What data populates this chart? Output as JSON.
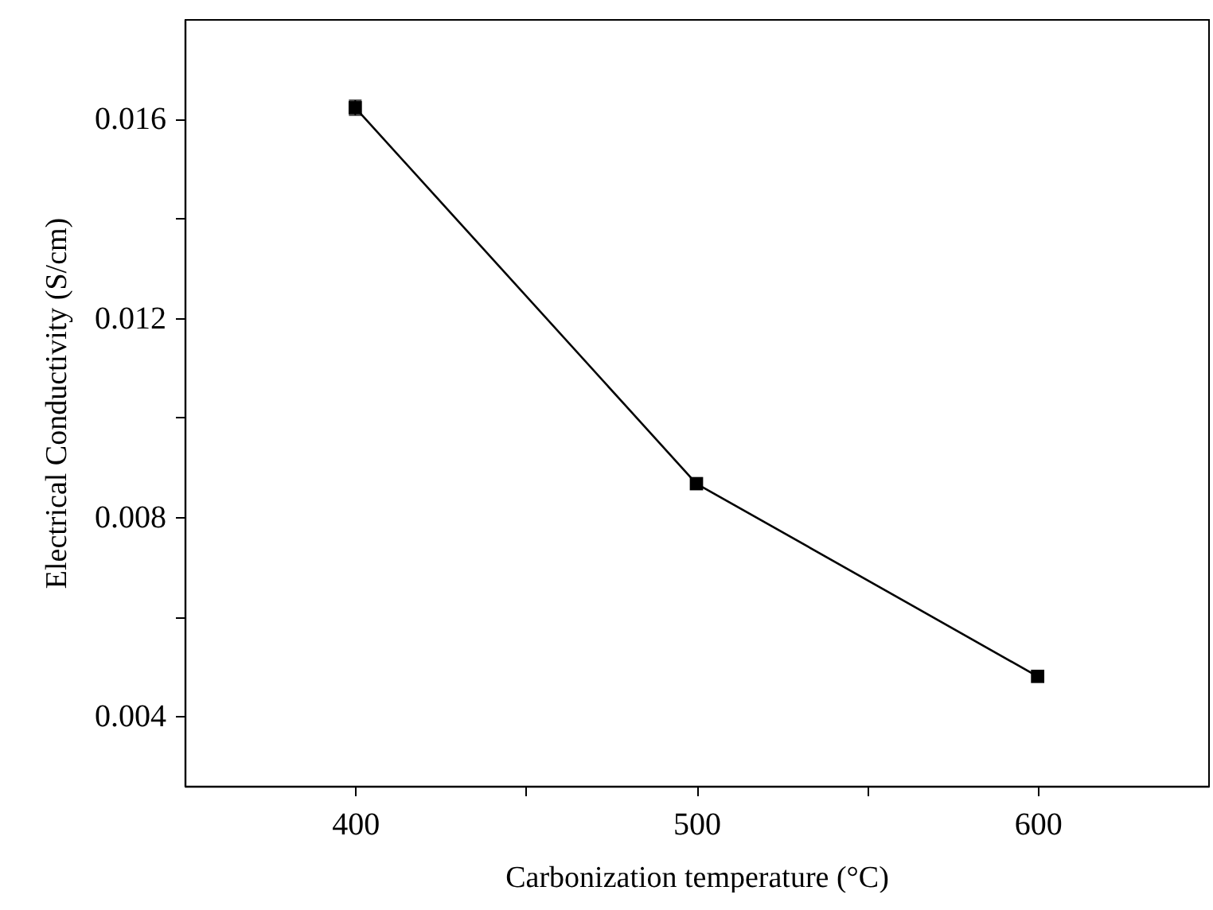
{
  "chart_data": {
    "type": "line",
    "xlabel": "Carbonization temperature (°C)",
    "ylabel": "Electrical Conductivity (S/cm)",
    "x": [
      400,
      500,
      600
    ],
    "series": [
      {
        "color": "#000000",
        "values": [
          0.01622,
          0.00867,
          0.0048
        ],
        "errors": [
          0.00015,
          null,
          null
        ]
      }
    ],
    "xlim": [
      350,
      650
    ],
    "xticks": [
      400,
      {
        "value": 450,
        "label": null
      },
      500,
      {
        "value": 550,
        "label": null
      },
      600
    ],
    "ylim": [
      0.0026,
      0.018
    ],
    "yticks": [
      0.004,
      {
        "value": 0.006,
        "label": null
      },
      0.008,
      {
        "value": 0.01,
        "label": null
      },
      0.012,
      {
        "value": 0.014,
        "label": null
      },
      0.016
    ],
    "marker": "square",
    "line_style": "solid",
    "grid": false
  }
}
